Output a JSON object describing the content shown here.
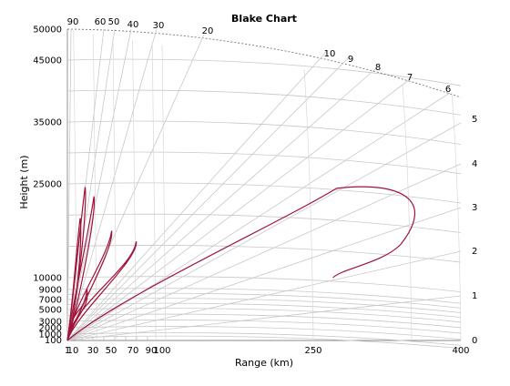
{
  "chart_data": {
    "type": "line",
    "title": "Blake Chart",
    "xlabel": "Range (km)",
    "ylabel": "Height (m)",
    "x_ticks": [
      1,
      10,
      30,
      50,
      70,
      90,
      100,
      250,
      400
    ],
    "y_ticks": [
      100,
      1000,
      2000,
      3000,
      5000,
      7000,
      9000,
      10000,
      25000,
      35000,
      45000,
      50000
    ],
    "right_ticks": [
      "0",
      "1",
      "2",
      "3",
      "4",
      "5"
    ],
    "angle_labels": [
      "90",
      "60",
      "50",
      "40",
      "30",
      "20",
      "10",
      "9",
      "8",
      "7",
      "6"
    ],
    "xlim": [
      0,
      400
    ],
    "grid": true,
    "series": [
      {
        "color": "#a0133a",
        "lobes": [
          {
            "peak_range_km": 18,
            "peak_height_m": 24500
          },
          {
            "peak_range_km": 27,
            "peak_height_m": 23000
          },
          {
            "peak_range_km": 13,
            "peak_height_m": 19500
          },
          {
            "peak_range_km": 45,
            "peak_height_m": 17500
          },
          {
            "peak_range_km": 70,
            "peak_height_m": 15800
          },
          {
            "peak_range_km": 20,
            "peak_height_m": 9000
          },
          {
            "peak_range_km": 320,
            "peak_height_m": 24000,
            "end_range_km": 270,
            "end_height_m": 10000
          }
        ]
      }
    ]
  }
}
